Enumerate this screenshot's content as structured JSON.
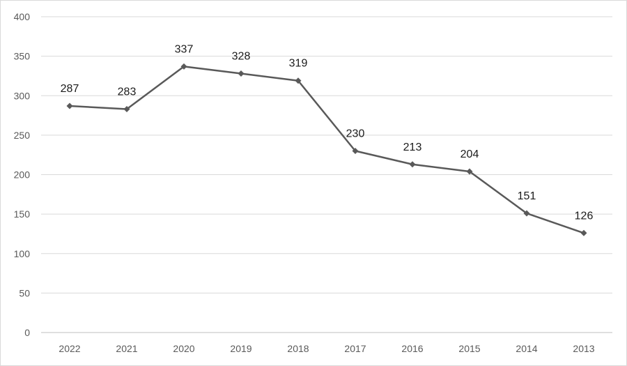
{
  "chart_data": {
    "type": "line",
    "categories": [
      "2022",
      "2021",
      "2020",
      "2019",
      "2018",
      "2017",
      "2016",
      "2015",
      "2014",
      "2013"
    ],
    "series": [
      {
        "values": [
          287,
          283,
          337,
          328,
          319,
          230,
          213,
          204,
          151,
          126
        ]
      }
    ],
    "yticks": [
      "0",
      "50",
      "100",
      "150",
      "200",
      "250",
      "300",
      "350",
      "400"
    ],
    "ylim": [
      0,
      400
    ],
    "grid": true,
    "legend": "none",
    "data_labels": true,
    "colors": {
      "line": "#595959",
      "marker": "#595959",
      "grid": "#d9d9d9"
    }
  }
}
